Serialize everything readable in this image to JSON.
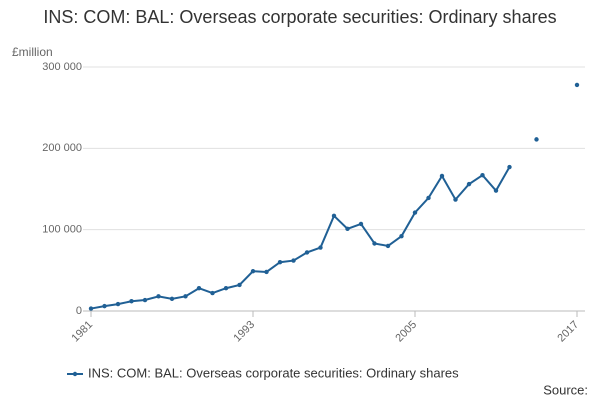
{
  "chart_data": {
    "type": "line",
    "title": "INS: COM: BAL: Overseas corporate securities: Ordinary shares",
    "y_label": "£million",
    "source": "Source:",
    "x": [
      1981,
      1982,
      1983,
      1984,
      1985,
      1986,
      1987,
      1988,
      1989,
      1990,
      1991,
      1992,
      1993,
      1994,
      1995,
      1996,
      1997,
      1998,
      1999,
      2000,
      2001,
      2002,
      2003,
      2004,
      2005,
      2006,
      2007,
      2008,
      2009,
      2010,
      2011,
      2012,
      2013,
      2014,
      2015,
      2016,
      2017
    ],
    "series": [
      {
        "name": "INS: COM: BAL: Overseas corporate securities: Ordinary shares",
        "color": "#206095",
        "values": [
          3000,
          6000,
          8500,
          12000,
          13500,
          18000,
          15000,
          18000,
          28000,
          22000,
          28000,
          32000,
          49000,
          48000,
          60000,
          62000,
          72000,
          78000,
          117000,
          101000,
          107000,
          83000,
          80000,
          92000,
          121000,
          139000,
          166000,
          137000,
          156000,
          167000,
          148000,
          177000,
          null,
          211000,
          null,
          null,
          278000
        ]
      }
    ],
    "xlim": [
      1981,
      2017
    ],
    "xticks": [
      1981,
      1993,
      2005,
      2017
    ],
    "ylim": [
      0,
      300000
    ],
    "yticks": [
      0,
      {
        "value": 100000,
        "label": "100 000"
      },
      {
        "value": 200000,
        "label": "200 000"
      },
      {
        "value": 300000,
        "label": "300 000"
      }
    ],
    "grid": true
  }
}
